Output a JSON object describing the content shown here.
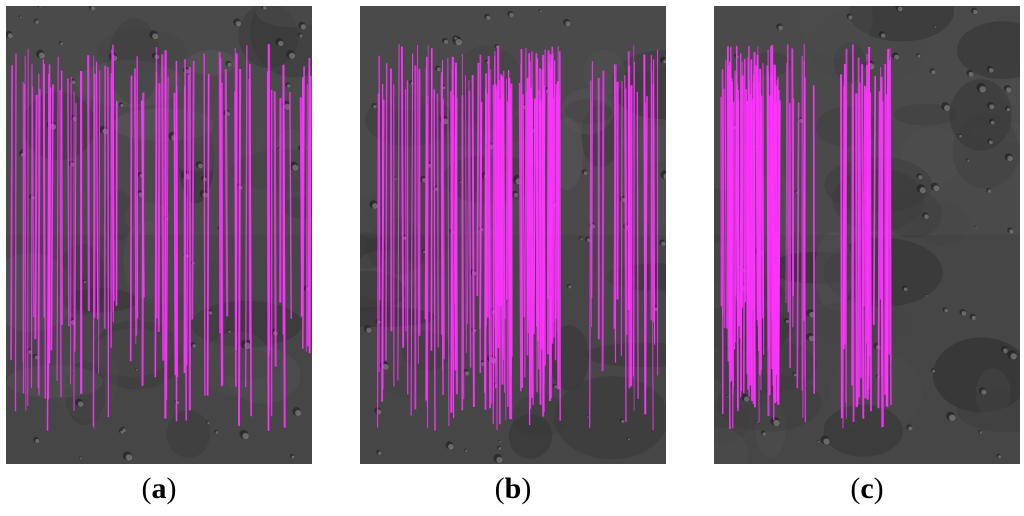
{
  "figure": {
    "panels": [
      {
        "id": "a",
        "label_open": "(",
        "label_letter": "a",
        "label_close": ")",
        "matches_region": "full",
        "density": "medium"
      },
      {
        "id": "b",
        "label_open": "(",
        "label_letter": "b",
        "label_close": ")",
        "matches_region": "full",
        "density": "high"
      },
      {
        "id": "c",
        "label_open": "(",
        "label_letter": "c",
        "label_close": ")",
        "matches_region": "left",
        "density": "high"
      }
    ],
    "match_line_color": "#ff33ff",
    "terrain_color": "#4a4a4a"
  }
}
